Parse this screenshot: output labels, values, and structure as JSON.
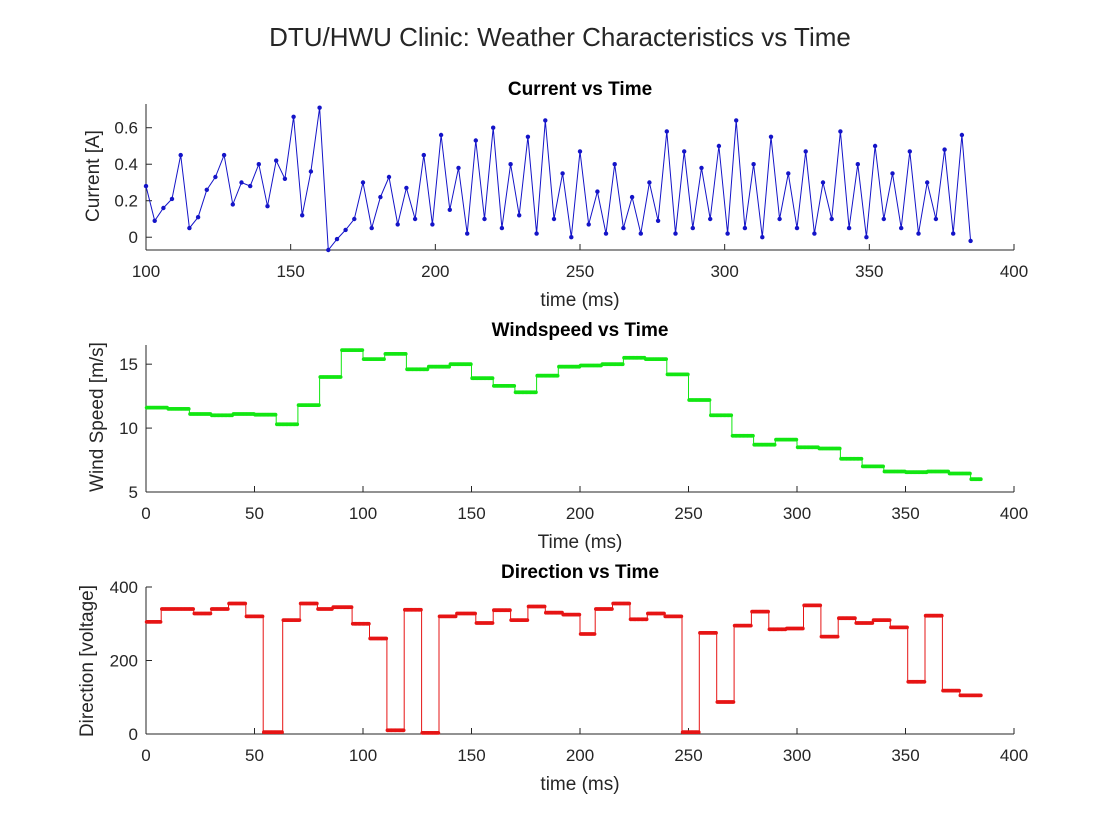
{
  "figure_title": "DTU/HWU Clinic: Weather Characteristics vs Time",
  "chart_data": [
    {
      "type": "line",
      "title": "Current vs Time",
      "xlabel": "time (ms)",
      "ylabel": "Current [A]",
      "xlim": [
        100,
        400
      ],
      "ylim": [
        -0.07,
        0.73
      ],
      "xticks": [
        100,
        150,
        200,
        250,
        300,
        350,
        400
      ],
      "yticks": [
        0,
        0.2,
        0.4,
        0.6
      ],
      "ytick_labels": [
        "0",
        "0.2",
        "0.4",
        "0.6"
      ],
      "color": "#1414c8",
      "marker": "dot",
      "series": [
        {
          "x": [
            100,
            103,
            106,
            109,
            112,
            115,
            118,
            121,
            124,
            127,
            130,
            133,
            136,
            139,
            142,
            145,
            148,
            151,
            154,
            157,
            160,
            163,
            166,
            169,
            172,
            175,
            178,
            181,
            184,
            187,
            190,
            193,
            196,
            199,
            202,
            205,
            208,
            211,
            214,
            217,
            220,
            223,
            226,
            229,
            232,
            235,
            238,
            241,
            244,
            247,
            250,
            253,
            256,
            259,
            262,
            265,
            268,
            271,
            274,
            277,
            280,
            283,
            286,
            289,
            292,
            295,
            298,
            301,
            304,
            307,
            310,
            313,
            316,
            319,
            322,
            325,
            328,
            331,
            334,
            337,
            340,
            343,
            346,
            349,
            352,
            355,
            358,
            361,
            364,
            367,
            370,
            373,
            376,
            379,
            382,
            385
          ],
          "y": [
            0.28,
            0.09,
            0.16,
            0.21,
            0.45,
            0.05,
            0.11,
            0.26,
            0.33,
            0.45,
            0.18,
            0.3,
            0.28,
            0.4,
            0.17,
            0.42,
            0.32,
            0.66,
            0.12,
            0.36,
            0.71,
            -0.07,
            -0.01,
            0.04,
            0.1,
            0.3,
            0.05,
            0.22,
            0.33,
            0.07,
            0.27,
            0.1,
            0.45,
            0.07,
            0.56,
            0.15,
            0.38,
            0.02,
            0.53,
            0.1,
            0.6,
            0.05,
            0.4,
            0.12,
            0.55,
            0.02,
            0.64,
            0.1,
            0.35,
            0.0,
            0.47,
            0.07,
            0.25,
            0.02,
            0.4,
            0.05,
            0.22,
            0.02,
            0.3,
            0.09,
            0.58,
            0.02,
            0.47,
            0.05,
            0.38,
            0.1,
            0.5,
            0.02,
            0.64,
            0.05,
            0.4,
            0.0,
            0.55,
            0.1,
            0.35,
            0.05,
            0.47,
            0.02,
            0.3,
            0.1,
            0.58,
            0.05,
            0.4,
            0.0,
            0.5,
            0.1,
            0.35,
            0.05,
            0.47,
            0.02,
            0.3,
            0.1,
            0.48,
            0.02,
            0.56,
            -0.02
          ]
        }
      ]
    },
    {
      "type": "line",
      "title": "Windspeed vs Time",
      "xlabel": "Time (ms)",
      "ylabel": "Wind Speed [m/s]",
      "xlim": [
        0,
        400
      ],
      "ylim": [
        5,
        16.5
      ],
      "xticks": [
        0,
        50,
        100,
        150,
        200,
        250,
        300,
        350,
        400
      ],
      "yticks": [
        5,
        10,
        15
      ],
      "ytick_labels": [
        "5",
        "10",
        "15"
      ],
      "color": "#12e612",
      "marker": "dot",
      "style": "step",
      "series": [
        {
          "steps": [
            [
              0,
              10,
              11.6
            ],
            [
              10,
              20,
              11.5
            ],
            [
              20,
              30,
              11.1
            ],
            [
              30,
              40,
              11.0
            ],
            [
              40,
              50,
              11.1
            ],
            [
              50,
              60,
              11.05
            ],
            [
              60,
              70,
              10.3
            ],
            [
              70,
              80,
              11.8
            ],
            [
              80,
              90,
              14.0
            ],
            [
              90,
              100,
              16.1
            ],
            [
              100,
              110,
              15.4
            ],
            [
              110,
              120,
              15.8
            ],
            [
              120,
              130,
              14.6
            ],
            [
              130,
              140,
              14.8
            ],
            [
              140,
              150,
              15.0
            ],
            [
              150,
              160,
              13.9
            ],
            [
              160,
              170,
              13.3
            ],
            [
              170,
              180,
              12.8
            ],
            [
              180,
              190,
              14.1
            ],
            [
              190,
              200,
              14.8
            ],
            [
              200,
              210,
              14.9
            ],
            [
              210,
              220,
              15.0
            ],
            [
              220,
              230,
              15.5
            ],
            [
              230,
              240,
              15.4
            ],
            [
              240,
              250,
              14.2
            ],
            [
              250,
              260,
              12.2
            ],
            [
              260,
              270,
              11.0
            ],
            [
              270,
              280,
              9.4
            ],
            [
              280,
              290,
              8.7
            ],
            [
              290,
              300,
              9.1
            ],
            [
              300,
              310,
              8.5
            ],
            [
              310,
              320,
              8.4
            ],
            [
              320,
              330,
              7.6
            ],
            [
              330,
              340,
              7.0
            ],
            [
              340,
              350,
              6.6
            ],
            [
              350,
              360,
              6.55
            ],
            [
              360,
              370,
              6.6
            ],
            [
              370,
              380,
              6.45
            ],
            [
              380,
              385,
              6.0
            ]
          ]
        }
      ]
    },
    {
      "type": "line",
      "title": "Direction vs Time",
      "xlabel": "time (ms)",
      "ylabel": "Direction [voltage]",
      "xlim": [
        0,
        400
      ],
      "ylim": [
        0,
        400
      ],
      "xticks": [
        0,
        50,
        100,
        150,
        200,
        250,
        300,
        350,
        400
      ],
      "yticks": [
        0,
        200,
        400
      ],
      "ytick_labels": [
        "0",
        "200",
        "400"
      ],
      "color": "#e61414",
      "marker": "dot",
      "style": "step",
      "series": [
        {
          "steps": [
            [
              0,
              7,
              305
            ],
            [
              7,
              22,
              340
            ],
            [
              22,
              30,
              328
            ],
            [
              30,
              38,
              340
            ],
            [
              38,
              46,
              355
            ],
            [
              46,
              54,
              320
            ],
            [
              54,
              63,
              5
            ],
            [
              63,
              71,
              310
            ],
            [
              71,
              79,
              355
            ],
            [
              79,
              86,
              340
            ],
            [
              86,
              95,
              345
            ],
            [
              95,
              103,
              300
            ],
            [
              103,
              111,
              260
            ],
            [
              111,
              119,
              10
            ],
            [
              119,
              127,
              338
            ],
            [
              127,
              135,
              3
            ],
            [
              135,
              143,
              320
            ],
            [
              143,
              152,
              328
            ],
            [
              152,
              160,
              302
            ],
            [
              160,
              168,
              337
            ],
            [
              168,
              176,
              310
            ],
            [
              176,
              184,
              347
            ],
            [
              184,
              192,
              330
            ],
            [
              192,
              200,
              325
            ],
            [
              200,
              207,
              272
            ],
            [
              207,
              215,
              340
            ],
            [
              215,
              223,
              355
            ],
            [
              223,
              231,
              312
            ],
            [
              231,
              239,
              328
            ],
            [
              239,
              247,
              320
            ],
            [
              247,
              255,
              5
            ],
            [
              255,
              263,
              275
            ],
            [
              263,
              271,
              87
            ],
            [
              271,
              279,
              295
            ],
            [
              279,
              287,
              333
            ],
            [
              287,
              295,
              285
            ],
            [
              295,
              303,
              287
            ],
            [
              303,
              311,
              350
            ],
            [
              311,
              319,
              265
            ],
            [
              319,
              327,
              315
            ],
            [
              327,
              335,
              302
            ],
            [
              335,
              343,
              310
            ],
            [
              343,
              351,
              290
            ],
            [
              351,
              359,
              142
            ],
            [
              359,
              367,
              322
            ],
            [
              367,
              375,
              118
            ],
            [
              375,
              385,
              105
            ]
          ]
        }
      ]
    }
  ]
}
